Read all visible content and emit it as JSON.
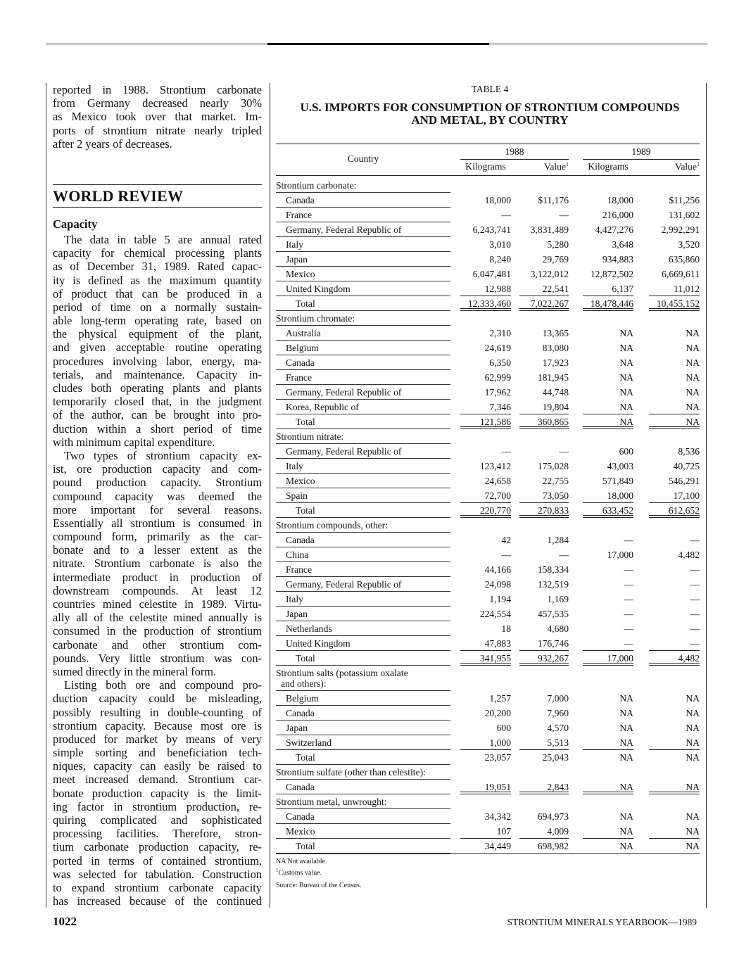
{
  "left_column": {
    "para_intro": [
      "reported in 1988. Strontium carbonate",
      "from Germany decreased nearly 30%",
      "as Mexico took over that market. Im-",
      "ports of strontium nitrate nearly tripled",
      "after 2 years of decreases."
    ],
    "section_heading": "WORLD REVIEW",
    "subheading": "Capacity",
    "para_1": [
      "The data in table 5 are annual rated",
      "capacity for chemical processing plants",
      "as of December 31, 1989. Rated capac-",
      "ity is defined as the maximum quantity",
      "of product that can be produced in a",
      "period of time on a normally sustain-",
      "able long-term operating rate, based on",
      "the physical equipment of the plant,",
      "and given acceptable routine operating",
      "procedures involving labor, energy, ma-",
      "terials, and maintenance. Capacity in-",
      "cludes both operating plants and plants",
      "temporarily closed that, in the judgment",
      "of the author, can be brought into pro-",
      "duction within a short period of time",
      "with minimum capital expenditure."
    ],
    "para_2": [
      "Two types of strontium capacity ex-",
      "ist, ore production capacity and com-",
      "pound production capacity. Strontium",
      "compound capacity was deemed the",
      "more important for several reasons.",
      "Essentially all strontium is consumed in",
      "compound form, primarily as the car-",
      "bonate and to a lesser extent as the",
      "nitrate. Strontium carbonate is also the",
      "intermediate product in production of",
      "downstream compounds. At least 12",
      "countries mined celestite in 1989. Virtu-",
      "ally all of the celestite mined annually is",
      "consumed in the production of strontium",
      "carbonate and other strontium com-",
      "pounds. Very little strontium was con-",
      "sumed directly in the mineral form."
    ],
    "para_3": [
      "Listing both ore and compound pro-",
      "duction capacity could be misleading,",
      "possibly resulting in double-counting of",
      "strontium capacity. Because most ore is",
      "produced for market by means of very",
      "simple sorting and beneficiation tech-",
      "niques, capacity can easily be raised to",
      "meet increased demand. Strontium car-",
      "bonate production capacity is the limit-",
      "ing factor in strontium production, re-",
      "quiring complicated and sophisticated",
      "processing facilities. Therefore, stron-",
      "tium carbonate production capacity, re-",
      "ported in terms of contained strontium,",
      "was selected for tabulation. Construction",
      "to expand strontium carbonate capacity",
      "has increased because of the continued"
    ]
  },
  "table": {
    "label": "TABLE 4",
    "title_line1": "U.S. IMPORTS FOR CONSUMPTION OF STRONTIUM COMPOUNDS",
    "title_line2": "AND METAL, BY COUNTRY",
    "headers": {
      "country": "Country",
      "year1": "1988",
      "year2": "1989",
      "kg": "Kilograms",
      "value": "Value",
      "footnote_mark": "1"
    },
    "rows": [
      {
        "kind": "group",
        "label": "Strontium carbonate:"
      },
      {
        "kind": "item",
        "label": "Canada",
        "values": [
          "18,000",
          "$11,176",
          "18,000",
          "$11,256"
        ]
      },
      {
        "kind": "item",
        "label": "France",
        "values": [
          "—",
          "—",
          "216,000",
          "131,602"
        ]
      },
      {
        "kind": "item",
        "label": "Germany, Federal Republic of",
        "values": [
          "6,243,741",
          "3,831,489",
          "4,427,276",
          "2,992,291"
        ]
      },
      {
        "kind": "item",
        "label": "Italy",
        "values": [
          "3,010",
          "5,280",
          "3,648",
          "3,520"
        ]
      },
      {
        "kind": "item",
        "label": "Japan",
        "values": [
          "8,240",
          "29,769",
          "934,883",
          "635,860"
        ]
      },
      {
        "kind": "item",
        "label": "Mexico",
        "values": [
          "6,047,481",
          "3,122,012",
          "12,872,502",
          "6,669,611"
        ]
      },
      {
        "kind": "item",
        "label": "United Kingdom",
        "values": [
          "12,988",
          "22,541",
          "6,137",
          "11,012"
        ]
      },
      {
        "kind": "total",
        "label": "Total",
        "values": [
          "12,333,460",
          "7,022,267",
          "18,478,446",
          "10,455,152"
        ]
      },
      {
        "kind": "group",
        "label": "Strontium chromate:"
      },
      {
        "kind": "item",
        "label": "Australia",
        "values": [
          "2,310",
          "13,365",
          "NA",
          "NA"
        ]
      },
      {
        "kind": "item",
        "label": "Belgium",
        "values": [
          "24,619",
          "83,080",
          "NA",
          "NA"
        ]
      },
      {
        "kind": "item",
        "label": "Canada",
        "values": [
          "6,350",
          "17,923",
          "NA",
          "NA"
        ]
      },
      {
        "kind": "item",
        "label": "France",
        "values": [
          "62,999",
          "181,945",
          "NA",
          "NA"
        ]
      },
      {
        "kind": "item",
        "label": "Germany, Federal Republic of",
        "values": [
          "17,962",
          "44,748",
          "NA",
          "NA"
        ]
      },
      {
        "kind": "item",
        "label": "Korea, Republic of",
        "values": [
          "7,346",
          "19,804",
          "NA",
          "NA"
        ]
      },
      {
        "kind": "total",
        "label": "Total",
        "values": [
          "121,586",
          "360,865",
          "NA",
          "NA"
        ]
      },
      {
        "kind": "group",
        "label": "Strontium nitrate:"
      },
      {
        "kind": "item",
        "label": "Germany, Federal Republic of",
        "values": [
          "—",
          "—",
          "600",
          "8,536"
        ]
      },
      {
        "kind": "item",
        "label": "Italy",
        "values": [
          "123,412",
          "175,028",
          "43,003",
          "40,725"
        ]
      },
      {
        "kind": "item",
        "label": "Mexico",
        "values": [
          "24,658",
          "22,755",
          "571,849",
          "546,291"
        ]
      },
      {
        "kind": "item",
        "label": "Spain",
        "values": [
          "72,700",
          "73,050",
          "18,000",
          "17,100"
        ]
      },
      {
        "kind": "total",
        "label": "Total",
        "values": [
          "220,770",
          "270,833",
          "633,452",
          "612,652"
        ]
      },
      {
        "kind": "group",
        "label": "Strontium compounds, other:"
      },
      {
        "kind": "item",
        "label": "Canada",
        "values": [
          "42",
          "1,284",
          "—",
          "—"
        ]
      },
      {
        "kind": "item",
        "label": "China",
        "values": [
          "—",
          "—",
          "17,000",
          "4,482"
        ]
      },
      {
        "kind": "item",
        "label": "France",
        "values": [
          "44,166",
          "158,334",
          "—",
          "—"
        ]
      },
      {
        "kind": "item",
        "label": "Germany, Federal Republic of",
        "values": [
          "24,098",
          "132,519",
          "—",
          "—"
        ]
      },
      {
        "kind": "item",
        "label": "Italy",
        "values": [
          "1,194",
          "1,169",
          "—",
          "—"
        ]
      },
      {
        "kind": "item",
        "label": "Japan",
        "values": [
          "224,554",
          "457,535",
          "—",
          "—"
        ]
      },
      {
        "kind": "item",
        "label": "Netherlands",
        "values": [
          "18",
          "4,680",
          "—",
          "—"
        ]
      },
      {
        "kind": "item",
        "label": "United Kingdom",
        "values": [
          "47,883",
          "176,746",
          "—",
          "—"
        ]
      },
      {
        "kind": "total",
        "label": "Total",
        "values": [
          "341,955",
          "932,267",
          "17,000",
          "4,482"
        ]
      },
      {
        "kind": "group",
        "label": "Strontium salts (potassium oxalate",
        "label2": "and others):"
      },
      {
        "kind": "item",
        "label": "Belgium",
        "values": [
          "1,257",
          "7,000",
          "NA",
          "NA"
        ]
      },
      {
        "kind": "item",
        "label": "Canada",
        "values": [
          "20,200",
          "7,960",
          "NA",
          "NA"
        ]
      },
      {
        "kind": "item",
        "label": "Japan",
        "values": [
          "600",
          "4,570",
          "NA",
          "NA"
        ]
      },
      {
        "kind": "item",
        "label": "Switzerland",
        "values": [
          "1,000",
          "5,513",
          "NA",
          "NA"
        ]
      },
      {
        "kind": "total",
        "label": "Total",
        "values": [
          "23,057",
          "25,043",
          "NA",
          "NA"
        ]
      },
      {
        "kind": "group",
        "label": "Strontium sulfate (other than celestite):"
      },
      {
        "kind": "item",
        "label": "Canada",
        "values": [
          "19,051",
          "2,843",
          "NA",
          "NA"
        ]
      },
      {
        "kind": "group",
        "label": "Strontium metal, unwrought:"
      },
      {
        "kind": "item",
        "label": "Canada",
        "values": [
          "34,342",
          "694,973",
          "NA",
          "NA"
        ]
      },
      {
        "kind": "item",
        "label": "Mexico",
        "values": [
          "107",
          "4,009",
          "NA",
          "NA"
        ]
      },
      {
        "kind": "total",
        "label": "Total",
        "values": [
          "34,449",
          "698,982",
          "NA",
          "NA"
        ]
      }
    ],
    "footnotes": {
      "na": "NA Not available.",
      "customs_mark": "1",
      "customs": "Customs value.",
      "source": "Source: Bureau of the Census."
    }
  },
  "footer": {
    "page_number": "1022",
    "running_title": "STRONTIUM MINERALS YEARBOOK—1989"
  }
}
